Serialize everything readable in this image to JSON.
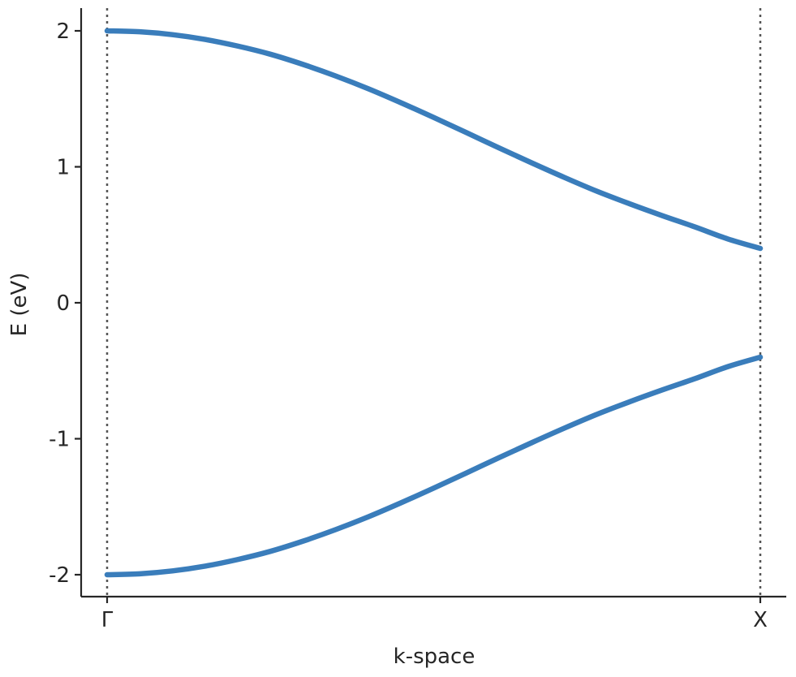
{
  "chart_data": {
    "type": "line",
    "title": "",
    "xlabel": "k-space",
    "ylabel": "E (eV)",
    "xlim": [
      0,
      1
    ],
    "ylim": [
      -2.15,
      2.15
    ],
    "x_ticks": [
      {
        "value": 0,
        "label": "Γ"
      },
      {
        "value": 1,
        "label": "X"
      }
    ],
    "y_ticks": [
      {
        "value": 2,
        "label": "2"
      },
      {
        "value": 1,
        "label": "1"
      },
      {
        "value": 0,
        "label": "0"
      },
      {
        "value": -1,
        "label": "-1"
      },
      {
        "value": -2,
        "label": "-2"
      }
    ],
    "vertical_lines": [
      0,
      1
    ],
    "grid": false,
    "legend": "none",
    "colors": {
      "series": "#3a7dbb",
      "vline": "#555555",
      "axis": "#262626"
    },
    "x": [
      0,
      0.05,
      0.1,
      0.15,
      0.2,
      0.25,
      0.3,
      0.35,
      0.4,
      0.45,
      0.5,
      0.55,
      0.6,
      0.65,
      0.7,
      0.75,
      0.8,
      0.85,
      0.9,
      0.95,
      1.0
    ],
    "series": [
      {
        "values": [
          2.0,
          1.993,
          1.972,
          1.937,
          1.888,
          1.828,
          1.753,
          1.668,
          1.574,
          1.471,
          1.363,
          1.252,
          1.139,
          1.029,
          0.922,
          0.82,
          0.728,
          0.641,
          0.558,
          0.47,
          0.4
        ]
      },
      {
        "values": [
          -2.0,
          -1.993,
          -1.972,
          -1.937,
          -1.888,
          -1.828,
          -1.753,
          -1.668,
          -1.574,
          -1.471,
          -1.363,
          -1.252,
          -1.139,
          -1.029,
          -0.922,
          -0.82,
          -0.728,
          -0.641,
          -0.558,
          -0.47,
          -0.4
        ]
      }
    ]
  }
}
